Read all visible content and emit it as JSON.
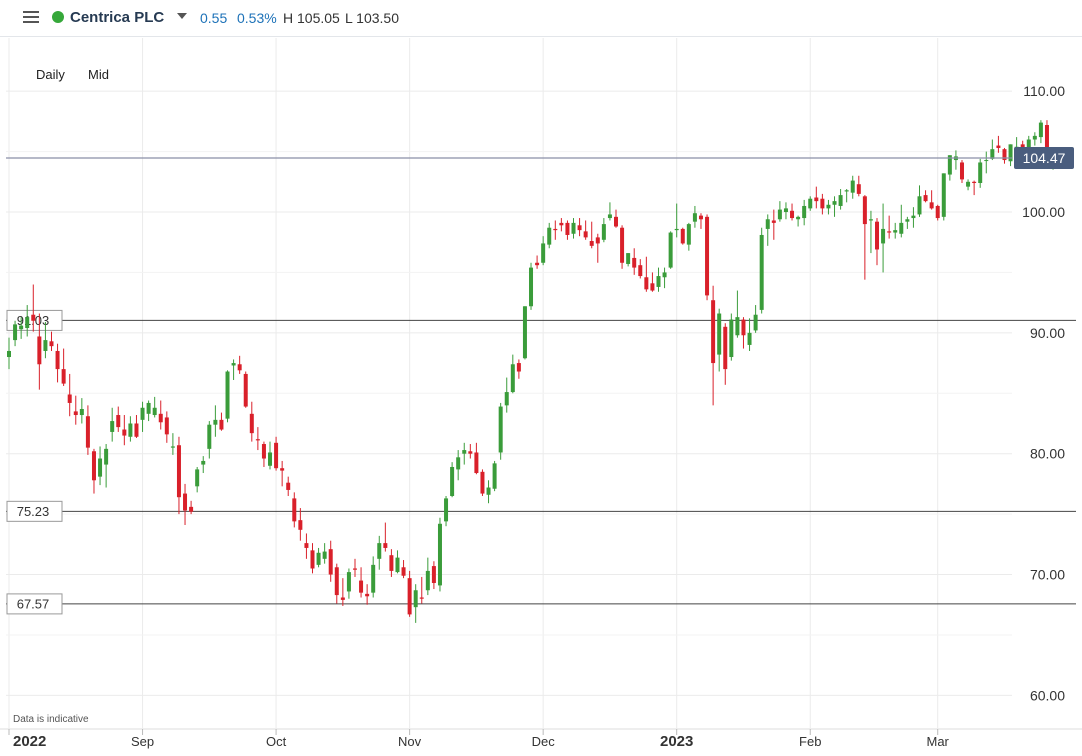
{
  "header": {
    "menu_icon": "hamburger-menu-icon",
    "status_color": "#36a83a",
    "instrument": "Centrica PLC",
    "dropdown_icon": "chevron-down-icon",
    "change": "0.55",
    "change_pct": "0.53%",
    "high_label": "H 105.05",
    "low_label": "L 103.50"
  },
  "toolbar": {
    "timeframe": "Daily",
    "price_type": "Mid"
  },
  "footer": {
    "note": "Data is indicative"
  },
  "chart_data": {
    "type": "candlestick",
    "colors": {
      "up": "#3a9c3a",
      "down": "#d9202a",
      "gridline": "#ebebeb",
      "current_price_line": "#8a8fa8",
      "current_price_label_bg": "#4a5d7e"
    },
    "y_ticks": [
      "110.00",
      "100.00",
      "90.00",
      "80.00",
      "70.00",
      "60.00"
    ],
    "y_tick_values": [
      110,
      100,
      90,
      80,
      70,
      60
    ],
    "ylim": [
      57.3,
      114.4
    ],
    "x_labels": [
      "2022",
      "Sep",
      "Oct",
      "Nov",
      "Dec",
      "2023",
      "Feb",
      "Mar"
    ],
    "x_label_bold": [
      true,
      false,
      false,
      false,
      false,
      true,
      false,
      false
    ],
    "x_label_index": [
      0,
      22,
      44,
      66,
      88,
      110,
      132,
      153
    ],
    "current_price": {
      "value": 104.47,
      "label": "104.47"
    },
    "levels": [
      {
        "value": 91.03,
        "label": "91.03"
      },
      {
        "value": 75.23,
        "label": "75.23"
      },
      {
        "value": 67.57,
        "label": "67.57"
      }
    ],
    "ohlc": [
      [
        88.0,
        89.6,
        87.0,
        88.5
      ],
      [
        89.4,
        91.0,
        88.9,
        90.7
      ],
      [
        90.3,
        91.3,
        89.5,
        90.6
      ],
      [
        90.4,
        92.3,
        89.7,
        91.3
      ],
      [
        91.5,
        94.0,
        90.1,
        91.0
      ],
      [
        89.7,
        91.6,
        85.3,
        87.4
      ],
      [
        88.5,
        90.9,
        87.9,
        89.4
      ],
      [
        89.3,
        90.1,
        88.5,
        88.9
      ],
      [
        88.5,
        89.1,
        85.9,
        87.0
      ],
      [
        87.0,
        88.7,
        85.6,
        85.8
      ],
      [
        84.9,
        86.6,
        83.1,
        84.2
      ],
      [
        83.5,
        84.8,
        82.4,
        83.2
      ],
      [
        83.2,
        84.6,
        82.5,
        83.7
      ],
      [
        83.1,
        84.0,
        79.9,
        80.5
      ],
      [
        80.2,
        80.4,
        76.7,
        77.8
      ],
      [
        78.1,
        80.6,
        77.4,
        79.6
      ],
      [
        79.1,
        80.8,
        77.2,
        80.4
      ],
      [
        81.8,
        83.8,
        81.0,
        82.7
      ],
      [
        83.2,
        83.9,
        81.8,
        82.2
      ],
      [
        82.0,
        83.2,
        80.7,
        81.5
      ],
      [
        81.4,
        83.1,
        81.0,
        82.5
      ],
      [
        82.5,
        83.2,
        81.3,
        81.4
      ],
      [
        82.8,
        84.3,
        81.8,
        83.8
      ],
      [
        83.3,
        84.4,
        82.7,
        84.2
      ],
      [
        83.2,
        84.7,
        83.0,
        83.8
      ],
      [
        83.3,
        84.4,
        82.0,
        82.6
      ],
      [
        83.0,
        83.5,
        80.9,
        81.6
      ],
      [
        80.5,
        81.7,
        79.9,
        80.6
      ],
      [
        80.7,
        81.4,
        75.0,
        76.4
      ],
      [
        76.7,
        77.5,
        74.1,
        75.3
      ],
      [
        75.6,
        76.1,
        75.0,
        75.2
      ],
      [
        77.3,
        78.9,
        76.8,
        78.7
      ],
      [
        79.1,
        79.8,
        78.4,
        79.4
      ],
      [
        80.4,
        82.7,
        79.6,
        82.4
      ],
      [
        82.4,
        84.0,
        81.4,
        82.8
      ],
      [
        82.8,
        83.4,
        81.9,
        82.0
      ],
      [
        82.9,
        86.9,
        82.6,
        86.8
      ],
      [
        87.3,
        87.8,
        86.1,
        87.5
      ],
      [
        87.4,
        88.1,
        86.6,
        86.9
      ],
      [
        86.6,
        86.8,
        83.8,
        83.9
      ],
      [
        83.3,
        84.3,
        81.0,
        81.7
      ],
      [
        81.2,
        82.2,
        80.3,
        81.1
      ],
      [
        80.8,
        81.0,
        78.9,
        79.6
      ],
      [
        79.0,
        81.0,
        78.7,
        80.1
      ],
      [
        80.9,
        81.4,
        78.6,
        78.8
      ],
      [
        78.8,
        79.4,
        77.3,
        78.6
      ],
      [
        77.6,
        78.1,
        76.5,
        77.0
      ],
      [
        76.3,
        76.8,
        73.9,
        74.4
      ],
      [
        74.5,
        75.5,
        72.8,
        73.7
      ],
      [
        72.6,
        73.4,
        71.3,
        72.2
      ],
      [
        72.0,
        72.6,
        70.1,
        70.5
      ],
      [
        70.8,
        72.2,
        70.6,
        71.8
      ],
      [
        71.3,
        72.6,
        70.9,
        71.9
      ],
      [
        72.1,
        72.8,
        69.4,
        70.0
      ],
      [
        70.6,
        70.9,
        67.6,
        68.3
      ],
      [
        68.1,
        69.7,
        67.4,
        67.9
      ],
      [
        68.6,
        70.5,
        68.0,
        70.2
      ],
      [
        70.5,
        71.3,
        69.8,
        70.4
      ],
      [
        69.5,
        70.6,
        68.1,
        68.5
      ],
      [
        68.4,
        69.2,
        67.5,
        68.2
      ],
      [
        68.5,
        71.5,
        68.1,
        70.8
      ],
      [
        71.3,
        73.2,
        70.4,
        72.6
      ],
      [
        72.6,
        74.3,
        71.9,
        72.2
      ],
      [
        71.6,
        72.1,
        69.8,
        70.3
      ],
      [
        70.2,
        72.0,
        70.1,
        71.4
      ],
      [
        70.6,
        71.2,
        69.7,
        69.9
      ],
      [
        69.7,
        70.3,
        66.5,
        66.7
      ],
      [
        67.3,
        69.2,
        66.0,
        68.7
      ],
      [
        68.1,
        69.8,
        67.6,
        68.0
      ],
      [
        68.7,
        71.4,
        68.3,
        70.3
      ],
      [
        70.7,
        71.1,
        68.8,
        69.3
      ],
      [
        69.1,
        74.7,
        68.6,
        74.2
      ],
      [
        74.4,
        76.5,
        74.0,
        76.3
      ],
      [
        76.5,
        79.3,
        76.4,
        78.9
      ],
      [
        78.7,
        80.3,
        77.8,
        79.7
      ],
      [
        80.0,
        80.9,
        79.1,
        80.3
      ],
      [
        80.2,
        80.8,
        79.6,
        80.0
      ],
      [
        80.1,
        80.9,
        78.3,
        78.4
      ],
      [
        78.5,
        78.7,
        76.5,
        76.7
      ],
      [
        76.6,
        77.8,
        75.9,
        77.2
      ],
      [
        77.1,
        79.4,
        76.9,
        79.2
      ],
      [
        80.1,
        84.2,
        79.5,
        83.9
      ],
      [
        84.0,
        86.3,
        83.4,
        85.1
      ],
      [
        85.1,
        88.2,
        85.0,
        87.4
      ],
      [
        87.5,
        87.8,
        86.2,
        86.8
      ],
      [
        87.9,
        92.2,
        87.8,
        92.2
      ],
      [
        92.2,
        95.8,
        91.9,
        95.4
      ],
      [
        95.8,
        96.4,
        95.3,
        95.6
      ],
      [
        95.8,
        98.0,
        95.6,
        97.4
      ],
      [
        97.3,
        99.1,
        97.0,
        98.7
      ],
      [
        98.6,
        99.3,
        97.7,
        98.5
      ],
      [
        99.1,
        99.5,
        98.4,
        98.9
      ],
      [
        99.1,
        99.3,
        97.7,
        98.1
      ],
      [
        98.2,
        99.5,
        97.8,
        99.1
      ],
      [
        98.9,
        99.5,
        98.0,
        98.5
      ],
      [
        98.4,
        99.3,
        97.7,
        97.9
      ],
      [
        97.6,
        99.2,
        97.0,
        97.2
      ],
      [
        97.9,
        98.2,
        95.8,
        97.4
      ],
      [
        97.7,
        99.5,
        97.5,
        99.0
      ],
      [
        99.5,
        100.8,
        99.3,
        99.8
      ],
      [
        99.6,
        100.2,
        98.7,
        98.8
      ],
      [
        98.7,
        98.9,
        95.3,
        95.8
      ],
      [
        95.7,
        96.6,
        95.5,
        96.6
      ],
      [
        96.2,
        97.0,
        94.8,
        95.4
      ],
      [
        95.6,
        96.1,
        94.5,
        94.7
      ],
      [
        94.6,
        96.3,
        93.4,
        93.6
      ],
      [
        94.1,
        95.0,
        93.4,
        93.5
      ],
      [
        93.8,
        95.4,
        93.4,
        94.7
      ],
      [
        94.6,
        95.4,
        93.7,
        95.0
      ],
      [
        95.4,
        98.4,
        95.3,
        98.3
      ],
      [
        98.5,
        100.7,
        97.9,
        98.6
      ],
      [
        98.6,
        98.7,
        97.3,
        97.4
      ],
      [
        97.3,
        99.1,
        96.8,
        99.0
      ],
      [
        99.2,
        100.5,
        98.7,
        99.9
      ],
      [
        99.7,
        99.9,
        98.6,
        99.4
      ],
      [
        99.6,
        99.8,
        92.7,
        93.1
      ],
      [
        92.7,
        93.9,
        84.0,
        87.5
      ],
      [
        88.2,
        92.0,
        86.8,
        91.6
      ],
      [
        90.5,
        90.8,
        85.7,
        87.0
      ],
      [
        88.0,
        91.6,
        87.7,
        91.1
      ],
      [
        89.8,
        93.5,
        89.6,
        91.3
      ],
      [
        91.1,
        91.3,
        88.7,
        89.8
      ],
      [
        89.0,
        91.2,
        88.5,
        90.0
      ],
      [
        90.2,
        92.3,
        90.0,
        91.5
      ],
      [
        91.9,
        98.7,
        91.6,
        98.1
      ],
      [
        98.6,
        99.8,
        97.2,
        99.4
      ],
      [
        99.3,
        100.2,
        97.7,
        99.1
      ],
      [
        99.4,
        100.9,
        99.2,
        100.2
      ],
      [
        100.0,
        100.8,
        99.4,
        100.3
      ],
      [
        100.1,
        100.7,
        99.3,
        99.5
      ],
      [
        99.4,
        99.7,
        98.8,
        99.6
      ],
      [
        99.5,
        101.0,
        98.9,
        100.5
      ],
      [
        100.3,
        101.3,
        100.1,
        101.1
      ],
      [
        101.2,
        102.1,
        100.3,
        100.9
      ],
      [
        101.1,
        101.5,
        99.8,
        100.3
      ],
      [
        100.3,
        101.0,
        99.8,
        100.6
      ],
      [
        100.6,
        101.3,
        99.6,
        100.9
      ],
      [
        100.5,
        101.9,
        100.2,
        101.4
      ],
      [
        101.7,
        101.9,
        100.8,
        101.8
      ],
      [
        101.6,
        103.0,
        101.1,
        102.6
      ],
      [
        102.3,
        103.0,
        101.3,
        101.5
      ],
      [
        101.3,
        101.4,
        94.4,
        99.0
      ],
      [
        99.3,
        100.1,
        96.6,
        99.4
      ],
      [
        99.2,
        99.5,
        95.6,
        96.9
      ],
      [
        97.4,
        100.7,
        95.0,
        98.6
      ],
      [
        98.4,
        99.7,
        97.8,
        98.3
      ],
      [
        98.3,
        99.1,
        97.8,
        98.5
      ],
      [
        98.2,
        100.6,
        97.9,
        99.1
      ],
      [
        99.2,
        99.6,
        98.6,
        99.4
      ],
      [
        99.5,
        100.4,
        98.7,
        99.7
      ],
      [
        99.8,
        102.2,
        99.6,
        101.3
      ],
      [
        101.4,
        101.8,
        100.8,
        100.9
      ],
      [
        100.8,
        101.8,
        100.2,
        100.3
      ],
      [
        100.5,
        100.6,
        99.3,
        99.5
      ],
      [
        99.6,
        103.2,
        99.3,
        103.2
      ],
      [
        103.1,
        104.7,
        102.6,
        104.7
      ],
      [
        104.3,
        105.1,
        103.5,
        104.6
      ],
      [
        104.1,
        104.3,
        102.4,
        102.7
      ],
      [
        102.1,
        102.7,
        101.8,
        102.5
      ],
      [
        102.5,
        102.6,
        101.4,
        102.4
      ],
      [
        102.4,
        104.4,
        102.0,
        104.1
      ],
      [
        104.3,
        105.0,
        103.2,
        104.3
      ],
      [
        104.4,
        106.0,
        104.3,
        105.2
      ],
      [
        105.5,
        106.3,
        104.9,
        105.3
      ],
      [
        105.2,
        105.3,
        104.0,
        104.3
      ],
      [
        104.2,
        105.6,
        103.8,
        105.6
      ],
      [
        105.3,
        106.2,
        104.8,
        105.4
      ],
      [
        105.6,
        105.9,
        104.7,
        104.9
      ],
      [
        104.9,
        106.3,
        104.4,
        106.0
      ],
      [
        106.0,
        106.6,
        105.5,
        106.3
      ],
      [
        106.2,
        107.6,
        105.7,
        107.4
      ],
      [
        107.2,
        107.6,
        103.9,
        104.2
      ],
      [
        104.2,
        105.1,
        103.5,
        104.47
      ]
    ]
  }
}
